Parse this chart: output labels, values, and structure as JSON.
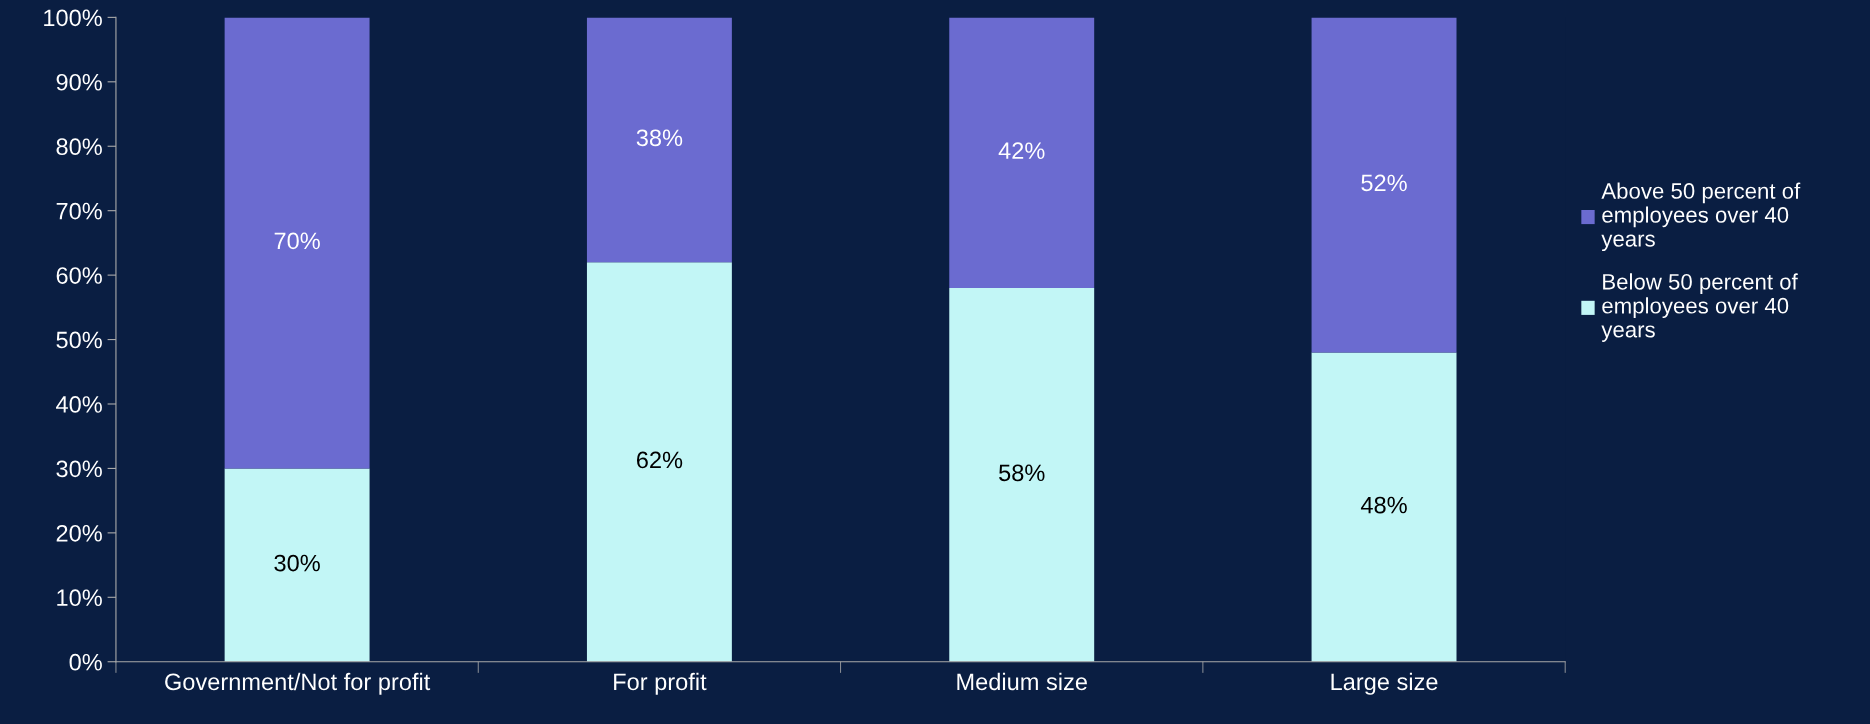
{
  "chart_data": {
    "type": "bar",
    "stacked": true,
    "categories": [
      "Government/Not for profit",
      "For profit",
      "Medium size",
      "Large size"
    ],
    "series": [
      {
        "name": "Below 50 percent of\nemployees over 40\nyears",
        "color": "#c2f6f6",
        "values": [
          30,
          62,
          58,
          48
        ],
        "value_labels": [
          "30%",
          "62%",
          "58%",
          "48%"
        ]
      },
      {
        "name": "Above 50 percent of\nemployees over 40\nyears",
        "color": "#6b6bd0",
        "values": [
          70,
          38,
          42,
          52
        ],
        "value_labels": [
          "70%",
          "38%",
          "42%",
          "52%"
        ]
      }
    ],
    "ylim": [
      0,
      100
    ],
    "yticks": [
      {
        "value": 0,
        "label": "0%"
      },
      {
        "value": 10,
        "label": "10%"
      },
      {
        "value": 20,
        "label": "20%"
      },
      {
        "value": 30,
        "label": "30%"
      },
      {
        "value": 40,
        "label": "40%"
      },
      {
        "value": 50,
        "label": "50%"
      },
      {
        "value": 60,
        "label": "60%"
      },
      {
        "value": 70,
        "label": "70%"
      },
      {
        "value": 80,
        "label": "80%"
      },
      {
        "value": 90,
        "label": "90%"
      },
      {
        "value": 100,
        "label": "100%"
      }
    ],
    "grid": false,
    "legend": "right"
  }
}
